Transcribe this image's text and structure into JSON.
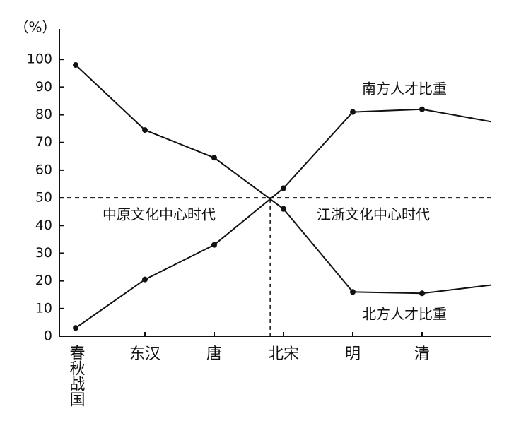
{
  "chart_data": {
    "type": "line",
    "y_axis_label": "（%）",
    "categories": [
      "春秋战国",
      "东汉",
      "唐",
      "北宋",
      "明",
      "清",
      null
    ],
    "series": [
      {
        "name": "北方人才比重",
        "color": "#111111",
        "values": [
          98,
          74.5,
          64.5,
          46,
          16,
          15.5,
          18.5
        ]
      },
      {
        "name": "南方人才比重",
        "color": "#111111",
        "values": [
          3,
          20.5,
          33,
          53.5,
          81,
          82,
          77.5
        ]
      }
    ],
    "ylim": [
      0,
      110
    ],
    "yticks": [
      0,
      10,
      20,
      30,
      40,
      50,
      60,
      70,
      80,
      90,
      100
    ],
    "reference_y": 50,
    "annotations": [
      "中原文化中心时代",
      "江浙文化中心时代"
    ]
  }
}
